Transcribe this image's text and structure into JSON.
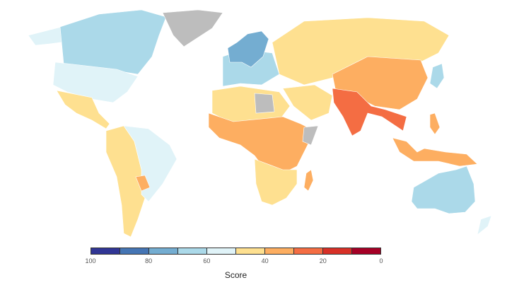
{
  "legend": {
    "title": "Score",
    "bins": [
      {
        "from": 100,
        "to": 90,
        "color": "#313695"
      },
      {
        "from": 90,
        "to": 80,
        "color": "#4575b4"
      },
      {
        "from": 80,
        "to": 70,
        "color": "#74add1"
      },
      {
        "from": 70,
        "to": 60,
        "color": "#abd9e9"
      },
      {
        "from": 60,
        "to": 50,
        "color": "#e0f3f8"
      },
      {
        "from": 50,
        "to": 40,
        "color": "#fee090"
      },
      {
        "from": 40,
        "to": 30,
        "color": "#fdae61"
      },
      {
        "from": 30,
        "to": 20,
        "color": "#f46d43"
      },
      {
        "from": 20,
        "to": 10,
        "color": "#d73027"
      },
      {
        "from": 10,
        "to": 0,
        "color": "#a50026"
      }
    ],
    "ticks": [
      {
        "label": "100",
        "pos": 0
      },
      {
        "label": "80",
        "pos": 20
      },
      {
        "label": "60",
        "pos": 40
      },
      {
        "label": "40",
        "pos": 60
      },
      {
        "label": "20",
        "pos": 80
      },
      {
        "label": "0",
        "pos": 100
      }
    ],
    "no_data_color": "#bdbdbd"
  },
  "regions": {
    "canada": "#abd9e9",
    "usa": "#e0f3f8",
    "alaska": "#e0f3f8",
    "greenland": "#bdbdbd",
    "mexico_central_america": "#fee090",
    "south_america_west": "#fee090",
    "brazil": "#e0f3f8",
    "paraguay": "#fdae61",
    "western_europe": "#abd9e9",
    "uk_germany_nordics": "#74add1",
    "russia_central_asia": "#fee090",
    "china": "#fdae61",
    "india_se_asia": "#f46d43",
    "japan": "#abd9e9",
    "north_africa": "#fee090",
    "sub_saharan_africa": "#fdae61",
    "southern_africa": "#fee090",
    "libya_sudan_somalia": "#bdbdbd",
    "middle_east": "#fee090",
    "indonesia": "#fdae61",
    "australia": "#abd9e9",
    "new_zealand": "#e0f3f8"
  }
}
